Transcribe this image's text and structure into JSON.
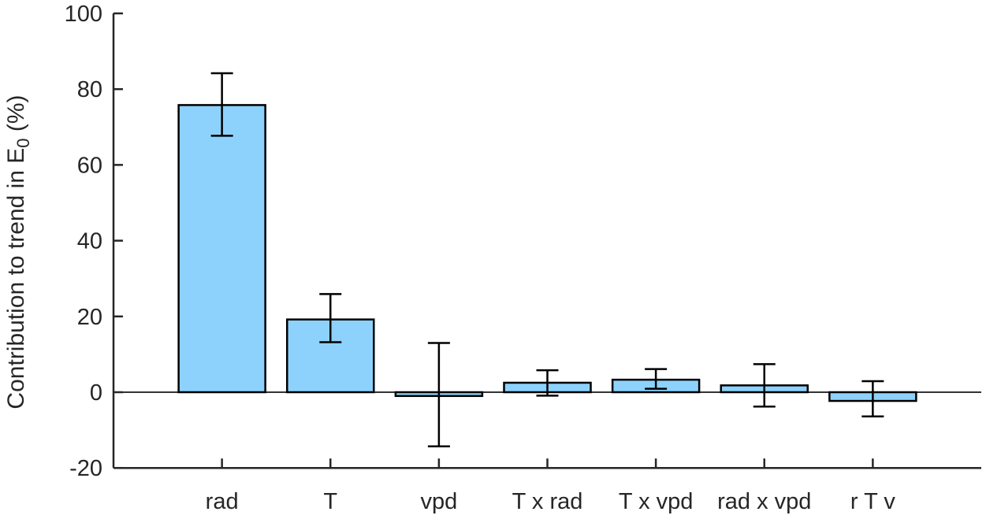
{
  "chart_data": {
    "type": "bar",
    "title": "",
    "xlabel": "",
    "ylabel": "Contribution to trend in E_0 (%)",
    "ylabel_parts": {
      "prefix": "Contribution to trend in E",
      "subscript": "0",
      "suffix": " (%)"
    },
    "categories": [
      "rad",
      "T",
      "vpd",
      "T x rad",
      "T x vpd",
      "rad x vpd",
      "r T v"
    ],
    "values": [
      75.8,
      19.2,
      -1.0,
      2.5,
      3.3,
      1.8,
      -2.3
    ],
    "error_low": [
      67.7,
      13.2,
      -14.3,
      -0.9,
      0.9,
      -3.8,
      -6.4
    ],
    "error_high": [
      84.2,
      25.9,
      13.0,
      5.8,
      6.1,
      7.4,
      2.9
    ],
    "ylim": [
      -20,
      100
    ],
    "yticks": [
      100,
      80,
      60,
      40,
      20,
      0,
      -20
    ],
    "ytick_labels": [
      "100",
      "80",
      "60",
      "40",
      "20",
      "0",
      "-20"
    ],
    "grid": false,
    "legend": null,
    "zero_line": true,
    "colors": {
      "bar_fill": "#8DD2FC",
      "bar_edge": "#000000",
      "error_bar": "#000000",
      "axis": "#262626",
      "zero_line": "#333333",
      "text": "#262626",
      "background": "#ffffff"
    }
  }
}
